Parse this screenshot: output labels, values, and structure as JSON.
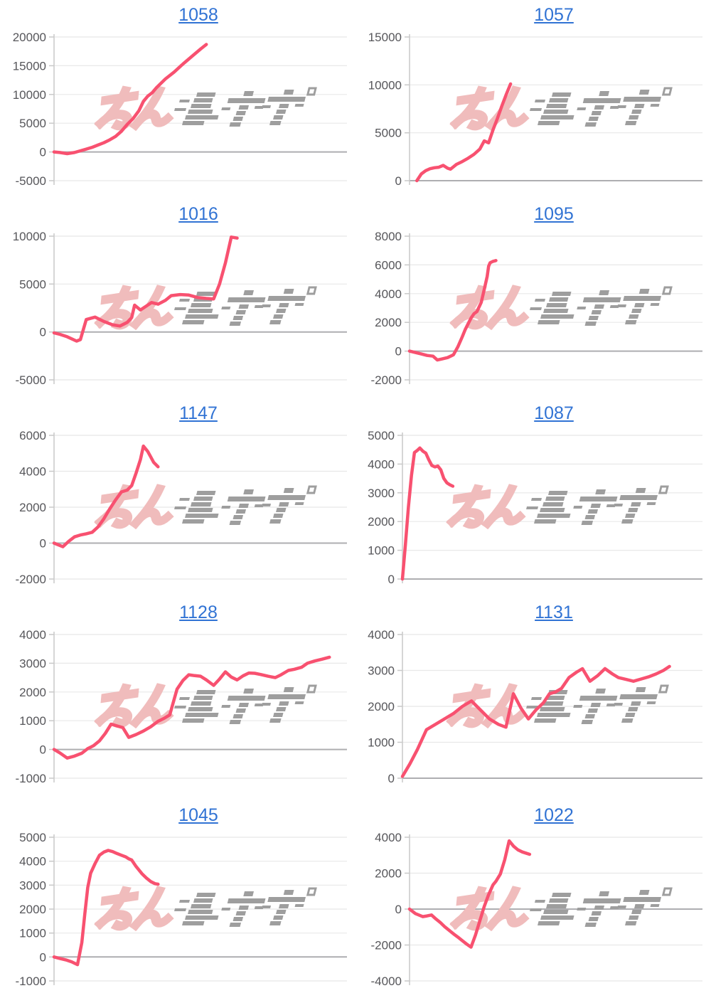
{
  "page": {
    "background": "#ffffff",
    "layout": "grid of 10 pachinko machine slump graphs, 2 columns x 5 rows"
  },
  "colors": {
    "line": "#F85170",
    "title_link": "#3173D4",
    "tick_label": "#56565A",
    "grid": "#E8E8E8",
    "zero_line": "#AEAEB1",
    "axis": "#C9C9C9",
    "watermark_pink": "#F0BCBC",
    "watermark_gray": "#9E9E9E"
  },
  "watermark": {
    "text": "みんレポ",
    "pink_part": "みん",
    "gray_part": "レポ"
  },
  "chart_data": [
    {
      "type": "line",
      "title": "1058",
      "ylim": [
        -5000,
        20000
      ],
      "yticks": [
        20000,
        15000,
        10000,
        5000,
        0,
        -5000
      ],
      "x_unit": "fraction_of_plot_width",
      "grid": true,
      "legend": "none",
      "points": [
        [
          0,
          0
        ],
        [
          0.02,
          -100
        ],
        [
          0.045,
          -300
        ],
        [
          0.07,
          -100
        ],
        [
          0.09,
          200
        ],
        [
          0.11,
          500
        ],
        [
          0.13,
          800
        ],
        [
          0.15,
          1200
        ],
        [
          0.17,
          1600
        ],
        [
          0.19,
          2100
        ],
        [
          0.21,
          2700
        ],
        [
          0.23,
          3600
        ],
        [
          0.25,
          4800
        ],
        [
          0.27,
          5800
        ],
        [
          0.29,
          7200
        ],
        [
          0.305,
          8800
        ],
        [
          0.32,
          9700
        ],
        [
          0.335,
          10300
        ],
        [
          0.35,
          11200
        ],
        [
          0.38,
          12700
        ],
        [
          0.41,
          13900
        ],
        [
          0.44,
          15300
        ],
        [
          0.47,
          16600
        ],
        [
          0.5,
          17900
        ],
        [
          0.52,
          18700
        ]
      ]
    },
    {
      "type": "line",
      "title": "1057",
      "ylim": [
        0,
        15000
      ],
      "yticks": [
        15000,
        10000,
        5000,
        0
      ],
      "x_unit": "fraction_of_plot_width",
      "grid": true,
      "legend": "none",
      "points": [
        [
          0.025,
          0
        ],
        [
          0.04,
          700
        ],
        [
          0.055,
          1050
        ],
        [
          0.07,
          1250
        ],
        [
          0.085,
          1350
        ],
        [
          0.1,
          1400
        ],
        [
          0.115,
          1600
        ],
        [
          0.13,
          1300
        ],
        [
          0.14,
          1200
        ],
        [
          0.16,
          1700
        ],
        [
          0.18,
          2000
        ],
        [
          0.2,
          2350
        ],
        [
          0.22,
          2750
        ],
        [
          0.24,
          3300
        ],
        [
          0.255,
          4150
        ],
        [
          0.27,
          3950
        ],
        [
          0.285,
          5300
        ],
        [
          0.3,
          6500
        ],
        [
          0.315,
          7800
        ],
        [
          0.33,
          9000
        ],
        [
          0.345,
          10100
        ]
      ]
    },
    {
      "type": "line",
      "title": "1016",
      "ylim": [
        -5000,
        10000
      ],
      "yticks": [
        10000,
        5000,
        0,
        -5000
      ],
      "x_unit": "fraction_of_plot_width",
      "grid": true,
      "legend": "none",
      "points": [
        [
          0,
          -100
        ],
        [
          0.02,
          -250
        ],
        [
          0.045,
          -500
        ],
        [
          0.077,
          -950
        ],
        [
          0.09,
          -800
        ],
        [
          0.11,
          1300
        ],
        [
          0.14,
          1550
        ],
        [
          0.17,
          1100
        ],
        [
          0.2,
          750
        ],
        [
          0.225,
          620
        ],
        [
          0.25,
          1000
        ],
        [
          0.265,
          1500
        ],
        [
          0.275,
          2800
        ],
        [
          0.295,
          2300
        ],
        [
          0.315,
          2700
        ],
        [
          0.333,
          3070
        ],
        [
          0.355,
          2900
        ],
        [
          0.38,
          3300
        ],
        [
          0.4,
          3790
        ],
        [
          0.43,
          3900
        ],
        [
          0.46,
          3850
        ],
        [
          0.49,
          3600
        ],
        [
          0.52,
          3500
        ],
        [
          0.545,
          3450
        ],
        [
          0.565,
          5000
        ],
        [
          0.585,
          7200
        ],
        [
          0.605,
          9900
        ],
        [
          0.625,
          9800
        ]
      ]
    },
    {
      "type": "line",
      "title": "1095",
      "ylim": [
        -2000,
        8000
      ],
      "yticks": [
        8000,
        6000,
        4000,
        2000,
        0,
        -2000
      ],
      "x_unit": "fraction_of_plot_width",
      "grid": true,
      "legend": "none",
      "points": [
        [
          0,
          0
        ],
        [
          0.02,
          -100
        ],
        [
          0.04,
          -200
        ],
        [
          0.06,
          -300
        ],
        [
          0.08,
          -350
        ],
        [
          0.095,
          -620
        ],
        [
          0.11,
          -550
        ],
        [
          0.13,
          -450
        ],
        [
          0.15,
          -250
        ],
        [
          0.165,
          300
        ],
        [
          0.18,
          1000
        ],
        [
          0.19,
          1500
        ],
        [
          0.2,
          1900
        ],
        [
          0.21,
          2300
        ],
        [
          0.22,
          2600
        ],
        [
          0.23,
          2750
        ],
        [
          0.245,
          3400
        ],
        [
          0.255,
          4300
        ],
        [
          0.265,
          5200
        ],
        [
          0.27,
          5900
        ],
        [
          0.275,
          6150
        ],
        [
          0.285,
          6250
        ],
        [
          0.295,
          6300
        ]
      ]
    },
    {
      "type": "line",
      "title": "1147",
      "ylim": [
        -2000,
        6000
      ],
      "yticks": [
        6000,
        4000,
        2000,
        0,
        -2000
      ],
      "x_unit": "fraction_of_plot_width",
      "grid": true,
      "legend": "none",
      "points": [
        [
          0,
          0
        ],
        [
          0.015,
          -100
        ],
        [
          0.03,
          -200
        ],
        [
          0.05,
          100
        ],
        [
          0.07,
          350
        ],
        [
          0.09,
          450
        ],
        [
          0.11,
          520
        ],
        [
          0.13,
          600
        ],
        [
          0.15,
          900
        ],
        [
          0.17,
          1350
        ],
        [
          0.19,
          1900
        ],
        [
          0.21,
          2400
        ],
        [
          0.23,
          2850
        ],
        [
          0.25,
          2950
        ],
        [
          0.265,
          3200
        ],
        [
          0.28,
          3900
        ],
        [
          0.295,
          4650
        ],
        [
          0.305,
          5400
        ],
        [
          0.32,
          5100
        ],
        [
          0.33,
          4800
        ],
        [
          0.34,
          4500
        ],
        [
          0.355,
          4250
        ]
      ]
    },
    {
      "type": "line",
      "title": "1087",
      "ylim": [
        0,
        5000
      ],
      "yticks": [
        5000,
        4000,
        3000,
        2000,
        1000,
        0
      ],
      "x_unit": "fraction_of_plot_width",
      "grid": true,
      "legend": "none",
      "points": [
        [
          0,
          0
        ],
        [
          0.01,
          1200
        ],
        [
          0.02,
          2500
        ],
        [
          0.03,
          3600
        ],
        [
          0.04,
          4400
        ],
        [
          0.05,
          4480
        ],
        [
          0.058,
          4560
        ],
        [
          0.068,
          4450
        ],
        [
          0.078,
          4380
        ],
        [
          0.088,
          4150
        ],
        [
          0.098,
          3950
        ],
        [
          0.108,
          3900
        ],
        [
          0.118,
          3930
        ],
        [
          0.128,
          3800
        ],
        [
          0.138,
          3500
        ],
        [
          0.148,
          3350
        ],
        [
          0.158,
          3280
        ],
        [
          0.168,
          3230
        ]
      ]
    },
    {
      "type": "line",
      "title": "1128",
      "ylim": [
        -1000,
        4000
      ],
      "yticks": [
        4000,
        3000,
        2000,
        1000,
        0,
        -1000
      ],
      "x_unit": "fraction_of_plot_width",
      "grid": true,
      "legend": "none",
      "points": [
        [
          0,
          0
        ],
        [
          0.02,
          -120
        ],
        [
          0.045,
          -300
        ],
        [
          0.07,
          -230
        ],
        [
          0.095,
          -130
        ],
        [
          0.115,
          30
        ],
        [
          0.135,
          130
        ],
        [
          0.155,
          300
        ],
        [
          0.175,
          560
        ],
        [
          0.195,
          880
        ],
        [
          0.215,
          820
        ],
        [
          0.235,
          760
        ],
        [
          0.255,
          420
        ],
        [
          0.28,
          520
        ],
        [
          0.305,
          640
        ],
        [
          0.33,
          790
        ],
        [
          0.355,
          980
        ],
        [
          0.375,
          1080
        ],
        [
          0.395,
          1200
        ],
        [
          0.42,
          2100
        ],
        [
          0.44,
          2400
        ],
        [
          0.46,
          2600
        ],
        [
          0.48,
          2570
        ],
        [
          0.5,
          2550
        ],
        [
          0.52,
          2420
        ],
        [
          0.545,
          2230
        ],
        [
          0.565,
          2450
        ],
        [
          0.585,
          2700
        ],
        [
          0.605,
          2520
        ],
        [
          0.625,
          2420
        ],
        [
          0.645,
          2560
        ],
        [
          0.665,
          2660
        ],
        [
          0.685,
          2650
        ],
        [
          0.705,
          2610
        ],
        [
          0.73,
          2550
        ],
        [
          0.755,
          2500
        ],
        [
          0.775,
          2600
        ],
        [
          0.8,
          2750
        ],
        [
          0.82,
          2790
        ],
        [
          0.845,
          2860
        ],
        [
          0.865,
          3000
        ],
        [
          0.89,
          3080
        ],
        [
          0.915,
          3140
        ],
        [
          0.94,
          3210
        ]
      ]
    },
    {
      "type": "line",
      "title": "1131",
      "ylim": [
        0,
        4000
      ],
      "yticks": [
        4000,
        3000,
        2000,
        1000,
        0
      ],
      "x_unit": "fraction_of_plot_width",
      "grid": true,
      "legend": "none",
      "points": [
        [
          0,
          50
        ],
        [
          0.025,
          400
        ],
        [
          0.05,
          800
        ],
        [
          0.08,
          1350
        ],
        [
          0.11,
          1500
        ],
        [
          0.14,
          1650
        ],
        [
          0.17,
          1800
        ],
        [
          0.2,
          2000
        ],
        [
          0.23,
          2150
        ],
        [
          0.26,
          1900
        ],
        [
          0.29,
          1650
        ],
        [
          0.32,
          1500
        ],
        [
          0.345,
          1420
        ],
        [
          0.37,
          2350
        ],
        [
          0.395,
          1950
        ],
        [
          0.42,
          1650
        ],
        [
          0.445,
          1900
        ],
        [
          0.47,
          2100
        ],
        [
          0.49,
          2350
        ],
        [
          0.51,
          2400
        ],
        [
          0.53,
          2500
        ],
        [
          0.555,
          2800
        ],
        [
          0.58,
          2950
        ],
        [
          0.6,
          3050
        ],
        [
          0.625,
          2700
        ],
        [
          0.65,
          2850
        ],
        [
          0.675,
          3050
        ],
        [
          0.7,
          2900
        ],
        [
          0.72,
          2800
        ],
        [
          0.745,
          2750
        ],
        [
          0.77,
          2700
        ],
        [
          0.795,
          2760
        ],
        [
          0.82,
          2820
        ],
        [
          0.845,
          2900
        ],
        [
          0.87,
          3000
        ],
        [
          0.89,
          3110
        ]
      ]
    },
    {
      "type": "line",
      "title": "1045",
      "ylim": [
        -1000,
        5000
      ],
      "yticks": [
        5000,
        4000,
        3000,
        2000,
        1000,
        0,
        -1000
      ],
      "x_unit": "fraction_of_plot_width",
      "grid": true,
      "legend": "none",
      "points": [
        [
          0,
          0
        ],
        [
          0.02,
          -60
        ],
        [
          0.04,
          -120
        ],
        [
          0.06,
          -200
        ],
        [
          0.08,
          -320
        ],
        [
          0.095,
          600
        ],
        [
          0.105,
          1800
        ],
        [
          0.115,
          2900
        ],
        [
          0.125,
          3500
        ],
        [
          0.14,
          3900
        ],
        [
          0.155,
          4250
        ],
        [
          0.17,
          4380
        ],
        [
          0.185,
          4450
        ],
        [
          0.2,
          4400
        ],
        [
          0.215,
          4320
        ],
        [
          0.23,
          4250
        ],
        [
          0.245,
          4180
        ],
        [
          0.255,
          4100
        ],
        [
          0.265,
          4050
        ],
        [
          0.28,
          3780
        ],
        [
          0.3,
          3480
        ],
        [
          0.315,
          3300
        ],
        [
          0.33,
          3150
        ],
        [
          0.345,
          3060
        ],
        [
          0.355,
          3040
        ]
      ]
    },
    {
      "type": "line",
      "title": "1022",
      "ylim": [
        -4000,
        4000
      ],
      "yticks": [
        4000,
        2000,
        0,
        -2000,
        -4000
      ],
      "x_unit": "fraction_of_plot_width",
      "grid": true,
      "legend": "none",
      "points": [
        [
          0,
          0
        ],
        [
          0.02,
          -250
        ],
        [
          0.045,
          -420
        ],
        [
          0.06,
          -380
        ],
        [
          0.075,
          -330
        ],
        [
          0.09,
          -550
        ],
        [
          0.105,
          -750
        ],
        [
          0.12,
          -980
        ],
        [
          0.135,
          -1180
        ],
        [
          0.15,
          -1380
        ],
        [
          0.165,
          -1560
        ],
        [
          0.18,
          -1760
        ],
        [
          0.195,
          -1950
        ],
        [
          0.21,
          -2120
        ],
        [
          0.225,
          -1450
        ],
        [
          0.24,
          -650
        ],
        [
          0.255,
          150
        ],
        [
          0.27,
          800
        ],
        [
          0.285,
          1350
        ],
        [
          0.295,
          1550
        ],
        [
          0.31,
          1950
        ],
        [
          0.325,
          2750
        ],
        [
          0.34,
          3800
        ],
        [
          0.355,
          3500
        ],
        [
          0.37,
          3300
        ],
        [
          0.385,
          3180
        ],
        [
          0.4,
          3100
        ],
        [
          0.41,
          3050
        ]
      ]
    }
  ]
}
